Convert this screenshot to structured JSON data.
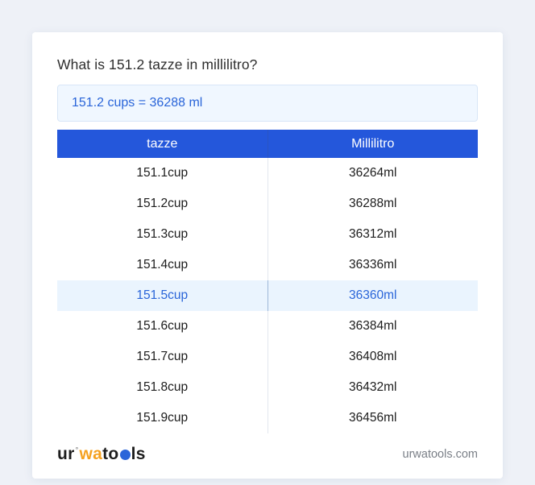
{
  "page": {
    "title": "What is 151.2 tazze in millilitro?",
    "result": "151.2 cups = 36288 ml"
  },
  "table": {
    "headers": [
      "tazze",
      "Millilitro"
    ],
    "rows": [
      {
        "tazze": "151.1cup",
        "ml": "36264ml",
        "highlight": false
      },
      {
        "tazze": "151.2cup",
        "ml": "36288ml",
        "highlight": false
      },
      {
        "tazze": "151.3cup",
        "ml": "36312ml",
        "highlight": false
      },
      {
        "tazze": "151.4cup",
        "ml": "36336ml",
        "highlight": false
      },
      {
        "tazze": "151.5cup",
        "ml": "36360ml",
        "highlight": true
      },
      {
        "tazze": "151.6cup",
        "ml": "36384ml",
        "highlight": false
      },
      {
        "tazze": "151.7cup",
        "ml": "36408ml",
        "highlight": false
      },
      {
        "tazze": "151.8cup",
        "ml": "36432ml",
        "highlight": false
      },
      {
        "tazze": "151.9cup",
        "ml": "36456ml",
        "highlight": false
      }
    ]
  },
  "footer": {
    "logo": {
      "pre": "ur",
      "sup": "°",
      "wa": "wa",
      "t": "to",
      "end": "ls"
    },
    "site": "urwatools.com"
  },
  "colors": {
    "header_blue": "#2457db",
    "accent_blue": "#2a65d9",
    "highlight_bg": "#eaf4fe",
    "result_bg": "#f0f7ff",
    "page_bg": "#eef1f7"
  }
}
